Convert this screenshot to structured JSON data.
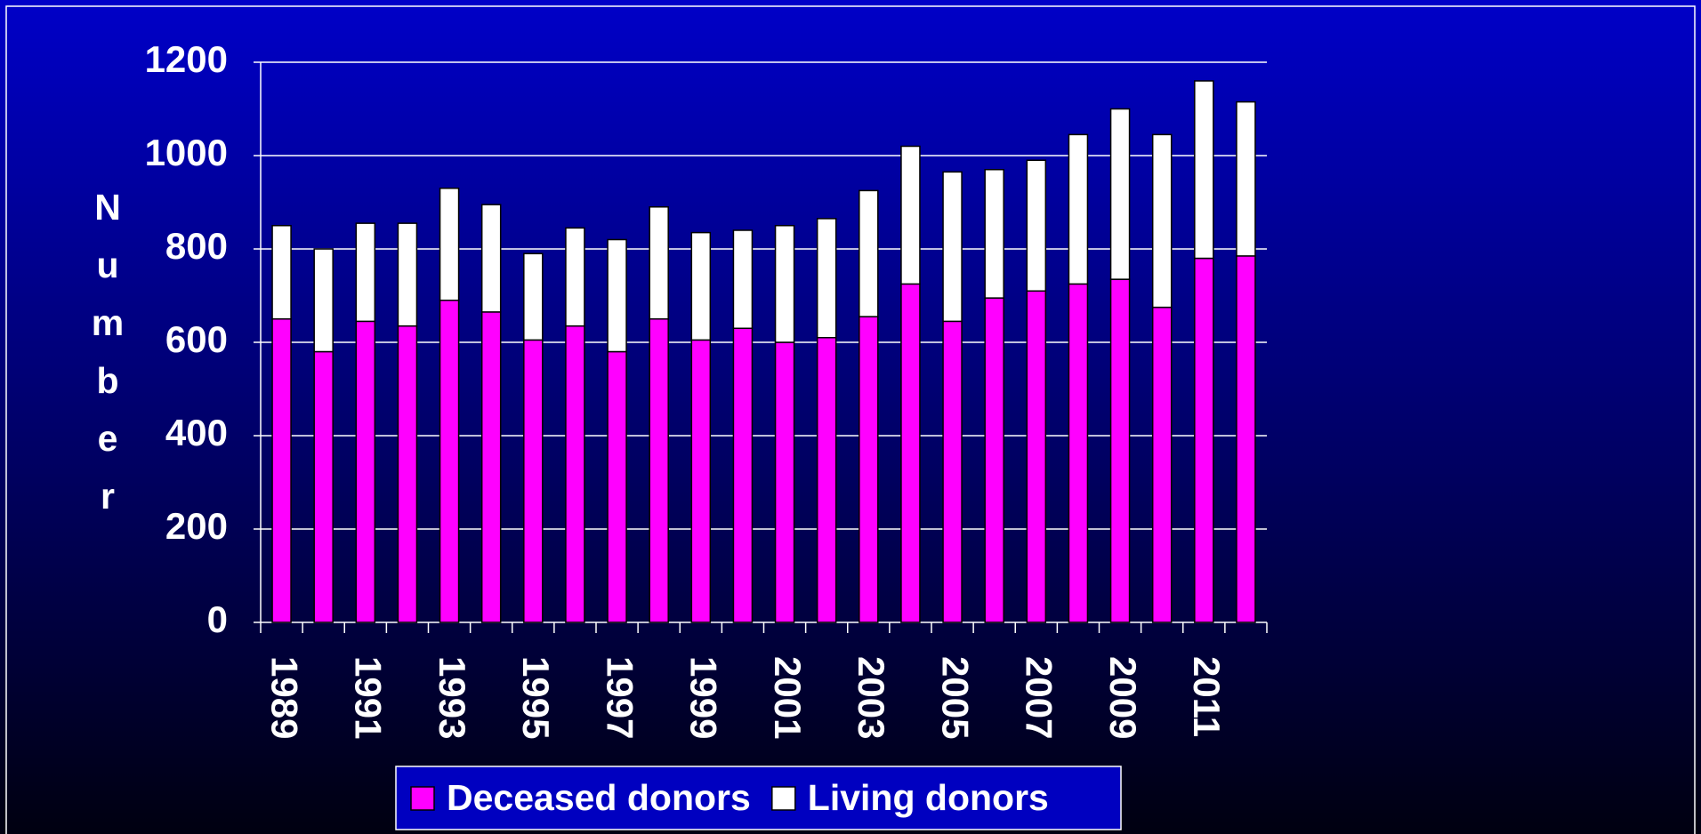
{
  "chart_data": {
    "type": "stacked_bar",
    "ylabel": "Number",
    "categories": [
      "1989",
      null,
      "1991",
      null,
      "1993",
      null,
      "1995",
      null,
      "1997",
      null,
      "1999",
      null,
      "2001",
      null,
      "2003",
      null,
      "2005",
      null,
      "2007",
      null,
      "2009",
      null,
      "2011",
      null
    ],
    "series": [
      {
        "name": "Deceased donors",
        "color": "#ff00ff",
        "values": [
          650,
          580,
          645,
          635,
          690,
          665,
          605,
          635,
          580,
          650,
          605,
          630,
          600,
          610,
          655,
          725,
          645,
          695,
          710,
          725,
          735,
          675,
          780,
          785
        ]
      },
      {
        "name": "Living donors",
        "color": "#ffffff",
        "values": [
          200,
          220,
          210,
          220,
          240,
          230,
          185,
          210,
          240,
          240,
          230,
          210,
          250,
          255,
          270,
          295,
          320,
          275,
          280,
          320,
          365,
          370,
          380,
          330
        ]
      }
    ],
    "ylim": [
      0,
      1200
    ],
    "yticks": [
      0,
      200,
      400,
      600,
      800,
      1000,
      1200
    ],
    "grid": true,
    "legend": "bottom"
  }
}
